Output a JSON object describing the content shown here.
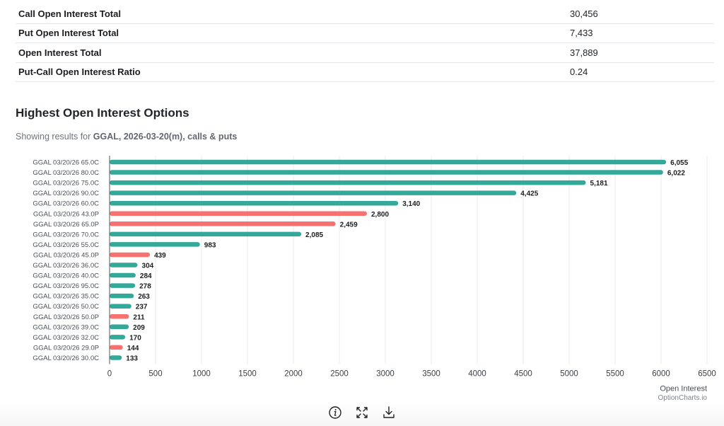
{
  "summary": {
    "rows": [
      {
        "label": "Call Open Interest Total",
        "value": "30,456"
      },
      {
        "label": "Put Open Interest Total",
        "value": "7,433"
      },
      {
        "label": "Open Interest Total",
        "value": "37,889"
      },
      {
        "label": "Put-Call Open Interest Ratio",
        "value": "0.24"
      }
    ]
  },
  "section": {
    "title": "Highest Open Interest Options",
    "subtitle_prefix": "Showing results for ",
    "subtitle_bold": "GGAL, 2026-03-20(m), calls & puts"
  },
  "colors": {
    "call": "#34a99a",
    "put": "#f87171",
    "grid": "#ebebeb",
    "axis": "#555555"
  },
  "chart_data": {
    "type": "bar",
    "orientation": "horizontal",
    "title": "Highest Open Interest Options",
    "xlabel": "Open Interest",
    "ylabel": "",
    "credit": "OptionCharts.io",
    "xlim": [
      0,
      6500
    ],
    "x_ticks": [
      0,
      500,
      1000,
      1500,
      2000,
      2500,
      3000,
      3500,
      4000,
      4500,
      5000,
      5500,
      6000,
      6500
    ],
    "grid": true,
    "categories": [
      "GGAL 03/20/26 65.0C",
      "GGAL 03/20/26 80.0C",
      "GGAL 03/20/26 75.0C",
      "GGAL 03/20/26 90.0C",
      "GGAL 03/20/26 60.0C",
      "GGAL 03/20/26 43.0P",
      "GGAL 03/20/26 65.0P",
      "GGAL 03/20/26 70.0C",
      "GGAL 03/20/26 55.0C",
      "GGAL 03/20/26 45.0P",
      "GGAL 03/20/26 36.0C",
      "GGAL 03/20/26 40.0C",
      "GGAL 03/20/26 95.0C",
      "GGAL 03/20/26 35.0C",
      "GGAL 03/20/26 50.0C",
      "GGAL 03/20/26 50.0P",
      "GGAL 03/20/26 39.0C",
      "GGAL 03/20/26 32.0C",
      "GGAL 03/20/26 29.0P",
      "GGAL 03/20/26 30.0C"
    ],
    "values": [
      6055,
      6022,
      5181,
      4425,
      3140,
      2800,
      2459,
      2085,
      983,
      439,
      304,
      284,
      278,
      263,
      237,
      211,
      209,
      170,
      144,
      133
    ],
    "value_labels": [
      "6,055",
      "6,022",
      "5,181",
      "4,425",
      "3,140",
      "2,800",
      "2,459",
      "2,085",
      "983",
      "439",
      "304",
      "284",
      "278",
      "263",
      "237",
      "211",
      "209",
      "170",
      "144",
      "133"
    ],
    "types": [
      "call",
      "call",
      "call",
      "call",
      "call",
      "put",
      "put",
      "call",
      "call",
      "put",
      "call",
      "call",
      "call",
      "call",
      "call",
      "put",
      "call",
      "call",
      "put",
      "call"
    ]
  },
  "toolbar": {
    "items": [
      {
        "icon": "info-icon",
        "label": "Info"
      },
      {
        "icon": "fullscreen-icon",
        "label": "Fullscreen"
      },
      {
        "icon": "download-icon",
        "label": "Download"
      }
    ]
  }
}
